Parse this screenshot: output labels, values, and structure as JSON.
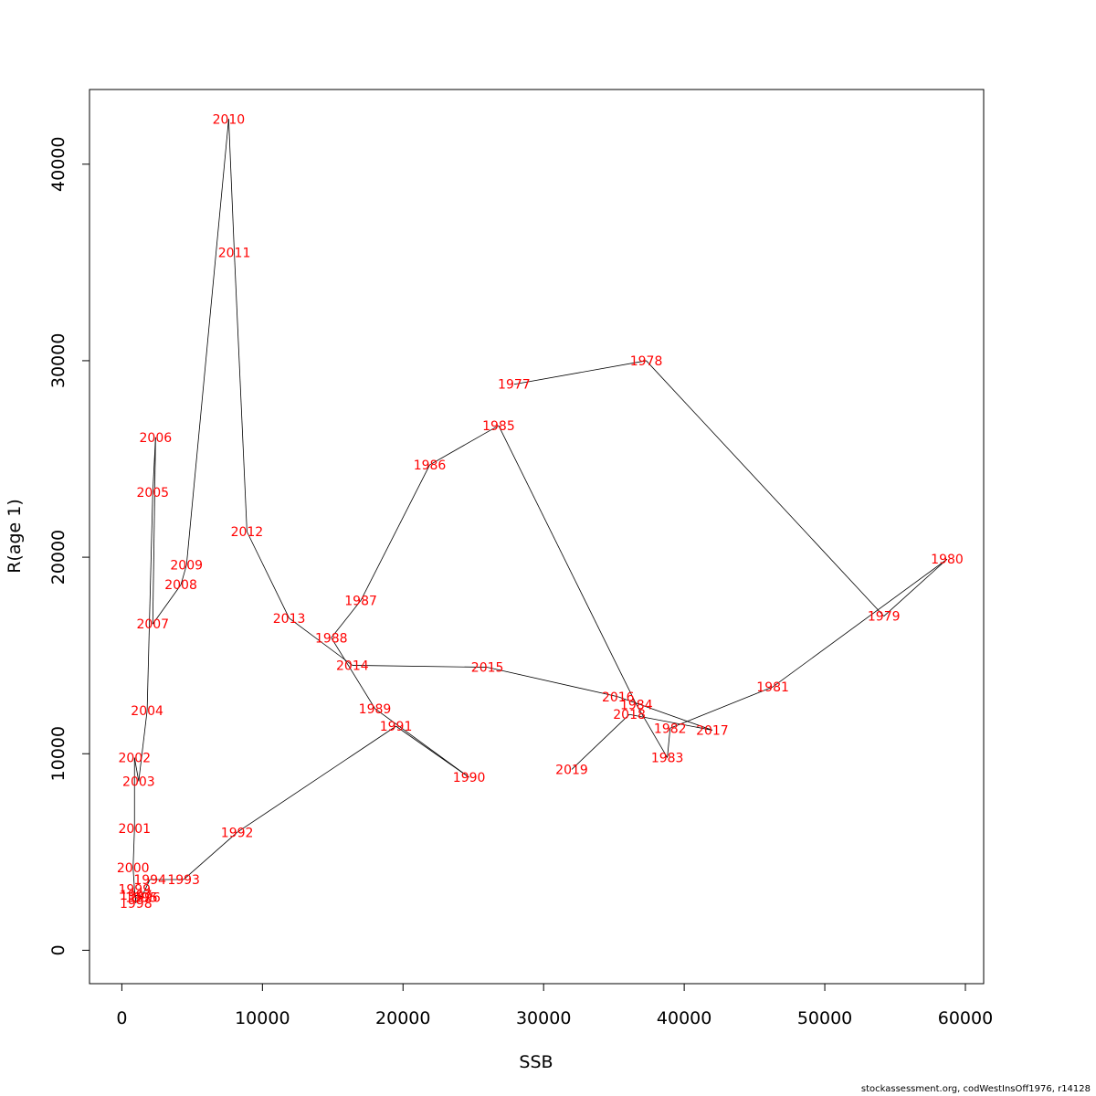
{
  "chart_data": {
    "type": "line",
    "xlabel": "SSB",
    "ylabel": "R(age 1)",
    "xlim": [
      -2300,
      61300
    ],
    "ylim": [
      -1700,
      43800
    ],
    "x_ticks": [
      0,
      10000,
      20000,
      30000,
      40000,
      50000,
      60000
    ],
    "x_tick_labels": [
      "0",
      "10000",
      "20000",
      "30000",
      "40000",
      "50000",
      "60000"
    ],
    "y_ticks": [
      0,
      10000,
      20000,
      30000,
      40000
    ],
    "y_tick_labels": [
      "0",
      "10000",
      "20000",
      "30000",
      "40000"
    ],
    "grid": false,
    "line_color": "#000000",
    "label_color": "#ff0000",
    "points": [
      {
        "year": "1977",
        "ssb": 27900,
        "r": 28800
      },
      {
        "year": "1978",
        "ssb": 37300,
        "r": 30000
      },
      {
        "year": "1979",
        "ssb": 54200,
        "r": 17000
      },
      {
        "year": "1980",
        "ssb": 58700,
        "r": 19900
      },
      {
        "year": "1981",
        "ssb": 46300,
        "r": 13400
      },
      {
        "year": "1982",
        "ssb": 39000,
        "r": 11300
      },
      {
        "year": "1983",
        "ssb": 38800,
        "r": 9800
      },
      {
        "year": "1984",
        "ssb": 36600,
        "r": 12500
      },
      {
        "year": "1985",
        "ssb": 26800,
        "r": 26700
      },
      {
        "year": "1986",
        "ssb": 21900,
        "r": 24700
      },
      {
        "year": "1987",
        "ssb": 17000,
        "r": 17800
      },
      {
        "year": "1988",
        "ssb": 14900,
        "r": 15900
      },
      {
        "year": "1989",
        "ssb": 18000,
        "r": 12300
      },
      {
        "year": "1990",
        "ssb": 24700,
        "r": 8800
      },
      {
        "year": "1991",
        "ssb": 19500,
        "r": 11400
      },
      {
        "year": "1992",
        "ssb": 8200,
        "r": 6000
      },
      {
        "year": "1993",
        "ssb": 4400,
        "r": 3600
      },
      {
        "year": "1994",
        "ssb": 2000,
        "r": 3600
      },
      {
        "year": "1995",
        "ssb": 1400,
        "r": 2700
      },
      {
        "year": "1996",
        "ssb": 1600,
        "r": 2700
      },
      {
        "year": "1997",
        "ssb": 1000,
        "r": 2800
      },
      {
        "year": "1998",
        "ssb": 1000,
        "r": 2400
      },
      {
        "year": "1999",
        "ssb": 900,
        "r": 3100
      },
      {
        "year": "2000",
        "ssb": 800,
        "r": 4200
      },
      {
        "year": "2001",
        "ssb": 900,
        "r": 6200
      },
      {
        "year": "2002",
        "ssb": 900,
        "r": 9800
      },
      {
        "year": "2003",
        "ssb": 1200,
        "r": 8600
      },
      {
        "year": "2004",
        "ssb": 1800,
        "r": 12200
      },
      {
        "year": "2005",
        "ssb": 2200,
        "r": 23300
      },
      {
        "year": "2006",
        "ssb": 2400,
        "r": 26100
      },
      {
        "year": "2007",
        "ssb": 2200,
        "r": 16600
      },
      {
        "year": "2008",
        "ssb": 4200,
        "r": 18600
      },
      {
        "year": "2009",
        "ssb": 4600,
        "r": 19600
      },
      {
        "year": "2010",
        "ssb": 7600,
        "r": 42300
      },
      {
        "year": "2011",
        "ssb": 8000,
        "r": 35500
      },
      {
        "year": "2012",
        "ssb": 8900,
        "r": 21300
      },
      {
        "year": "2013",
        "ssb": 11900,
        "r": 16900
      },
      {
        "year": "2014",
        "ssb": 16400,
        "r": 14500
      },
      {
        "year": "2015",
        "ssb": 26000,
        "r": 14400
      },
      {
        "year": "2016",
        "ssb": 35300,
        "r": 12900
      },
      {
        "year": "2017",
        "ssb": 42000,
        "r": 11200
      },
      {
        "year": "2018",
        "ssb": 36100,
        "r": 12000
      },
      {
        "year": "2019",
        "ssb": 32000,
        "r": 9200
      }
    ]
  },
  "footer": "stockassessment.org, codWestInsOff1976, r14128"
}
